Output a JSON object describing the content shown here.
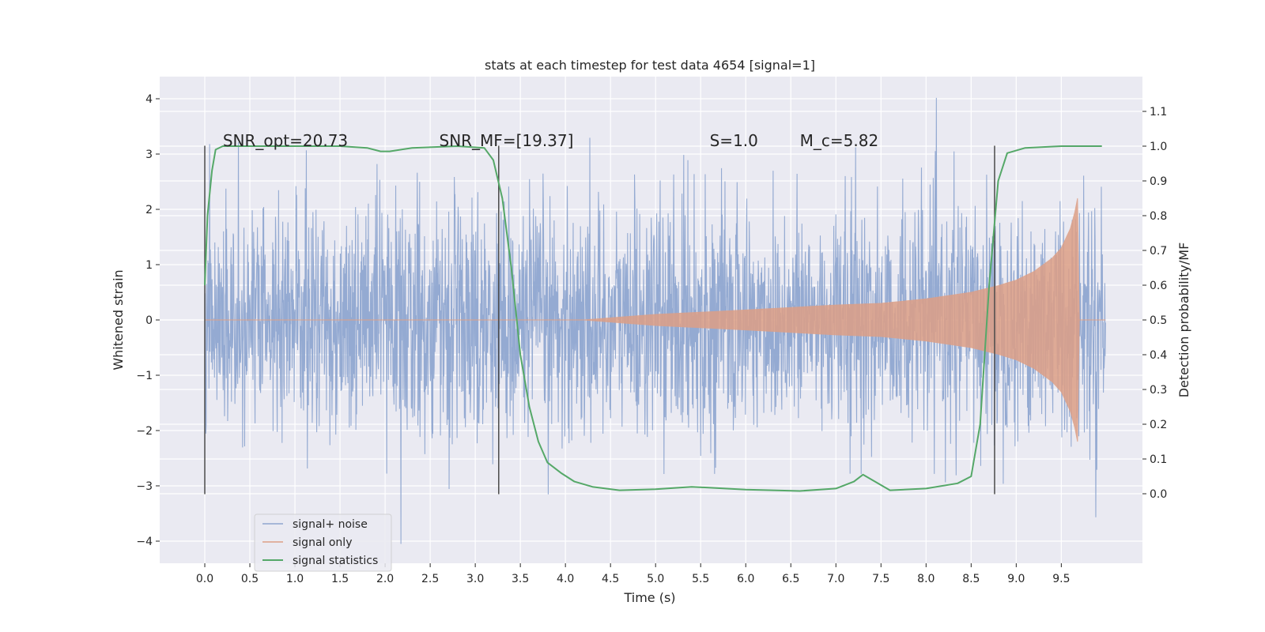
{
  "chart_data": {
    "type": "line",
    "title": "stats at each timestep for test data 4654 [signal=1]",
    "xlabel": "Time (s)",
    "ylabel": "Whitened strain",
    "y2label": "Detection probability/MF",
    "xlim": [
      -0.5,
      10.4
    ],
    "ylim": [
      -4.4,
      4.4
    ],
    "y2lim": [
      -0.2,
      1.2
    ],
    "xticks": [
      "0.0",
      "0.5",
      "1.0",
      "1.5",
      "2.0",
      "2.5",
      "3.0",
      "3.5",
      "4.0",
      "4.5",
      "5.0",
      "5.5",
      "6.0",
      "6.5",
      "7.0",
      "7.5",
      "8.0",
      "8.5",
      "9.0",
      "9.5"
    ],
    "yticks": [
      "−4",
      "−3",
      "−2",
      "−1",
      "0",
      "1",
      "2",
      "3",
      "4"
    ],
    "y2ticks": [
      "0.0",
      "0.1",
      "0.2",
      "0.3",
      "0.4",
      "0.5",
      "0.6",
      "0.7",
      "0.8",
      "0.9",
      "1.0",
      "1.1"
    ],
    "grid": true,
    "legend_position": "lower-left",
    "annotations": [
      {
        "label": "SNR_opt=20.73",
        "x": 0.2
      },
      {
        "label": "SNR_MF=[19.37]",
        "x": 2.6
      },
      {
        "label": "S=1.0",
        "x": 5.6
      },
      {
        "label": "M_c=5.82",
        "x": 6.6
      }
    ],
    "vlines_x": [
      0.0,
      3.26,
      8.76
    ],
    "vlines_range": [
      -3.15,
      3.15
    ],
    "series": [
      {
        "name": "signal+ noise",
        "color": "#8fa6d0",
        "x_range": [
          0.0,
          9.99
        ],
        "envelope": {
          "typical_abs": 2.1,
          "peak_abs": 4.05
        }
      },
      {
        "name": "signal only",
        "color": "#dd9f86",
        "x": [
          4.2,
          5.0,
          6.0,
          7.0,
          7.5,
          8.0,
          8.5,
          8.8,
          9.0,
          9.2,
          9.4,
          9.5,
          9.6,
          9.65,
          9.68,
          9.7
        ],
        "amplitude": [
          0.0,
          0.1,
          0.18,
          0.27,
          0.3,
          0.38,
          0.5,
          0.62,
          0.72,
          0.88,
          1.12,
          1.3,
          1.65,
          1.95,
          2.2,
          0.0
        ]
      },
      {
        "name": "signal statistics",
        "color": "#55a868",
        "x": [
          0.0,
          0.03,
          0.08,
          0.12,
          0.2,
          0.4,
          1.0,
          1.5,
          1.8,
          1.95,
          2.05,
          2.3,
          2.8,
          3.1,
          3.2,
          3.3,
          3.4,
          3.5,
          3.6,
          3.7,
          3.8,
          3.95,
          4.1,
          4.3,
          4.6,
          5.0,
          5.4,
          6.0,
          6.6,
          7.0,
          7.2,
          7.3,
          7.4,
          7.6,
          8.0,
          8.35,
          8.5,
          8.6,
          8.7,
          8.8,
          8.9,
          9.1,
          9.5,
          9.95
        ],
        "y": [
          0.6,
          0.8,
          0.93,
          0.99,
          1.0,
          1.0,
          1.0,
          1.0,
          0.995,
          0.985,
          0.985,
          0.995,
          1.0,
          0.995,
          0.96,
          0.85,
          0.65,
          0.4,
          0.25,
          0.15,
          0.09,
          0.06,
          0.035,
          0.02,
          0.01,
          0.013,
          0.02,
          0.012,
          0.008,
          0.015,
          0.035,
          0.055,
          0.04,
          0.01,
          0.015,
          0.03,
          0.05,
          0.2,
          0.6,
          0.9,
          0.98,
          0.995,
          1.0,
          1.0
        ]
      }
    ]
  }
}
